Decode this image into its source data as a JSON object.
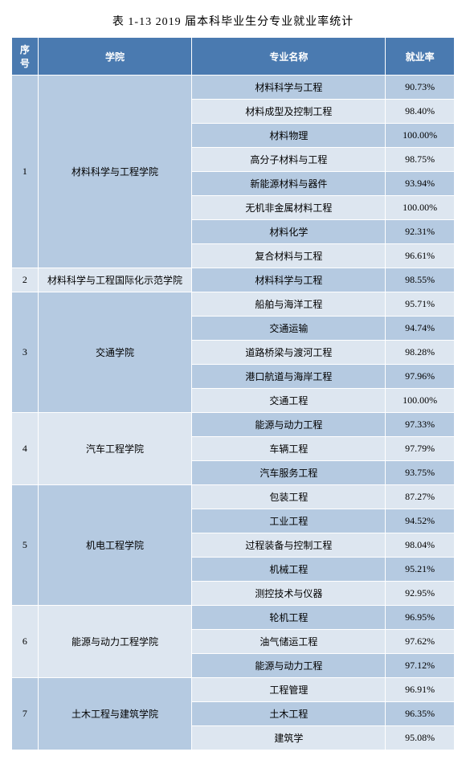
{
  "title": "表 1-13  2019 届本科毕业生分专业就业率统计",
  "colors": {
    "header_bg": "#4a7ab0",
    "header_fg": "#ffffff",
    "band_a": "#b5cae1",
    "band_b": "#dde6f0",
    "index_band_a": "#b5cae1",
    "index_band_b": "#dde6f0",
    "border": "#ffffff"
  },
  "headers": {
    "seq": "序号",
    "college": "学院",
    "major": "专业名称",
    "rate": "就业率"
  },
  "groups": [
    {
      "seq": "1",
      "college": "材料科学与工程学院",
      "rows": [
        {
          "major": "材料科学与工程",
          "rate": "90.73%"
        },
        {
          "major": "材料成型及控制工程",
          "rate": "98.40%"
        },
        {
          "major": "材料物理",
          "rate": "100.00%"
        },
        {
          "major": "高分子材料与工程",
          "rate": "98.75%"
        },
        {
          "major": "新能源材料与器件",
          "rate": "93.94%"
        },
        {
          "major": "无机非金属材料工程",
          "rate": "100.00%"
        },
        {
          "major": "材料化学",
          "rate": "92.31%"
        },
        {
          "major": "复合材料与工程",
          "rate": "96.61%"
        }
      ]
    },
    {
      "seq": "2",
      "college": "材料科学与工程国际化示范学院",
      "rows": [
        {
          "major": "材料科学与工程",
          "rate": "98.55%"
        }
      ]
    },
    {
      "seq": "3",
      "college": "交通学院",
      "rows": [
        {
          "major": "船舶与海洋工程",
          "rate": "95.71%"
        },
        {
          "major": "交通运输",
          "rate": "94.74%"
        },
        {
          "major": "道路桥梁与渡河工程",
          "rate": "98.28%"
        },
        {
          "major": "港口航道与海岸工程",
          "rate": "97.96%"
        },
        {
          "major": "交通工程",
          "rate": "100.00%"
        }
      ]
    },
    {
      "seq": "4",
      "college": "汽车工程学院",
      "rows": [
        {
          "major": "能源与动力工程",
          "rate": "97.33%"
        },
        {
          "major": "车辆工程",
          "rate": "97.79%"
        },
        {
          "major": "汽车服务工程",
          "rate": "93.75%"
        }
      ]
    },
    {
      "seq": "5",
      "college": "机电工程学院",
      "rows": [
        {
          "major": "包装工程",
          "rate": "87.27%"
        },
        {
          "major": "工业工程",
          "rate": "94.52%"
        },
        {
          "major": "过程装备与控制工程",
          "rate": "98.04%"
        },
        {
          "major": "机械工程",
          "rate": "95.21%"
        },
        {
          "major": "测控技术与仪器",
          "rate": "92.95%"
        }
      ]
    },
    {
      "seq": "6",
      "college": "能源与动力工程学院",
      "rows": [
        {
          "major": "轮机工程",
          "rate": "96.95%"
        },
        {
          "major": "油气储运工程",
          "rate": "97.62%"
        },
        {
          "major": "能源与动力工程",
          "rate": "97.12%"
        }
      ]
    },
    {
      "seq": "7",
      "college": "土木工程与建筑学院",
      "rows": [
        {
          "major": "工程管理",
          "rate": "96.91%"
        },
        {
          "major": "土木工程",
          "rate": "96.35%"
        },
        {
          "major": "建筑学",
          "rate": "95.08%"
        }
      ]
    }
  ]
}
